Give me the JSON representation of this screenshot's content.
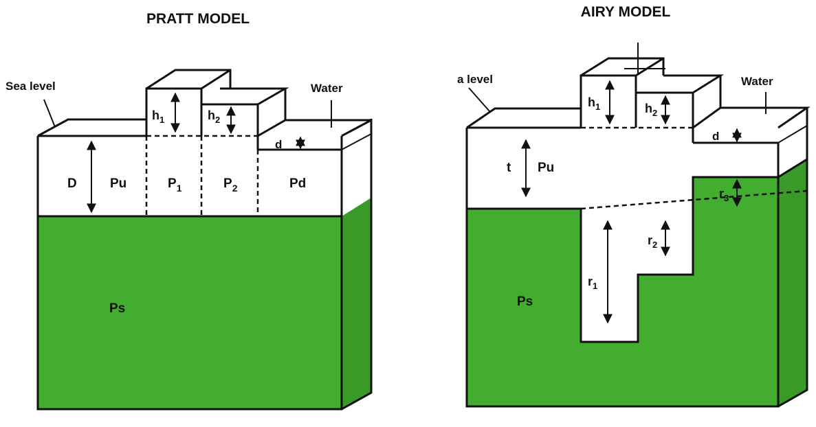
{
  "colors": {
    "mantle": "#43ad2f",
    "mantle_dark": "#3a9a28",
    "crust": "#ffffff",
    "line": "#111111"
  },
  "pratt": {
    "title": "PRATT MODEL",
    "sea_level": "Sea level",
    "water": "Water",
    "h1": "h",
    "h1_sub": "1",
    "h2": "h",
    "h2_sub": "2",
    "d": "d",
    "D": "D",
    "pu": "Pu",
    "p1": "P",
    "p1_sub": "1",
    "p2": "P",
    "p2_sub": "2",
    "pd": "Pd",
    "ps": "Ps"
  },
  "airy": {
    "title": "AIRY MODEL",
    "sea_level": "a level",
    "water": "Water",
    "h1": "h",
    "h1_sub": "1",
    "h2": "h",
    "h2_sub": "2",
    "d": "d",
    "t": "t",
    "pu": "Pu",
    "r1": "r",
    "r1_sub": "1",
    "r2": "r",
    "r2_sub": "2",
    "r3": "r",
    "r3_sub": "3",
    "ps": "Ps"
  }
}
